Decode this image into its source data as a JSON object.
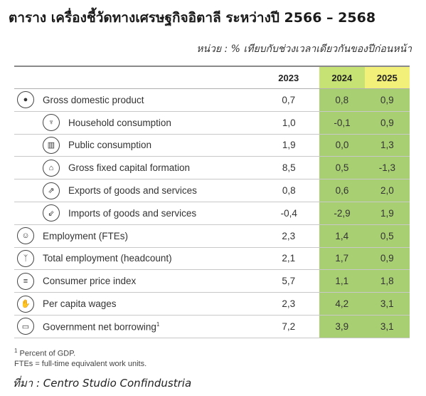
{
  "title": "ตาราง เครื่องชี้วัดทางเศรษฐกิจอิตาลี ระหว่างปี 2566 – 2568",
  "unit": "หน่วย : % เทียบกับช่วงเวลาเดียวกันของปีก่อนหน้า",
  "header": {
    "y2023": "2023",
    "y2024": "2024",
    "y2025": "2025"
  },
  "colors": {
    "header_2024": "#c7e274",
    "header_2025": "#f3f07a",
    "cell_green": "#a9cf73"
  },
  "rows": [
    {
      "label": "Gross domestic product",
      "icon": "coin-icon",
      "v2023": "0,7",
      "v2024": "0,8",
      "v2025": "0,9"
    },
    {
      "label": "Household consumption",
      "icon": "shopping-bag-icon",
      "v2023": "1,0",
      "v2024": "-0,1",
      "v2025": "0,9"
    },
    {
      "label": "Public consumption",
      "icon": "government-building-icon",
      "v2023": "1,9",
      "v2024": "0,0",
      "v2025": "1,3"
    },
    {
      "label": "Gross fixed capital formation",
      "icon": "house-icon",
      "v2023": "8,5",
      "v2024": "0,5",
      "v2025": "-1,3"
    },
    {
      "label": "Exports of goods and services",
      "icon": "exports-icon",
      "v2023": "0,8",
      "v2024": "0,6",
      "v2025": "2,0"
    },
    {
      "label": "Imports of goods and services",
      "icon": "imports-icon",
      "v2023": "-0,4",
      "v2024": "-2,9",
      "v2025": "1,9"
    },
    {
      "label": "Employment (FTEs)",
      "icon": "worker-icon",
      "v2023": "2,3",
      "v2024": "1,4",
      "v2025": "0,5"
    },
    {
      "label": "Total employment (headcount)",
      "icon": "people-icon",
      "v2023": "2,1",
      "v2024": "1,7",
      "v2025": "0,9"
    },
    {
      "label": "Consumer price index",
      "icon": "coins-stack-icon",
      "v2023": "5,7",
      "v2024": "1,1",
      "v2025": "1,8"
    },
    {
      "label": "Per capita wages",
      "icon": "wage-icon",
      "v2023": "2,3",
      "v2024": "4,2",
      "v2025": "3,1"
    },
    {
      "label": "Government net borrowing",
      "label_sup": "1",
      "icon": "monitor-icon",
      "v2023": "7,2",
      "v2024": "3,9",
      "v2025": "3,1"
    }
  ],
  "footnotes": {
    "note1_sup": "1",
    "note1": " Percent of GDP.",
    "note2": "FTEs = full-time equivalent work units."
  },
  "source": "ที่มา : Centro Studio Confindustria"
}
